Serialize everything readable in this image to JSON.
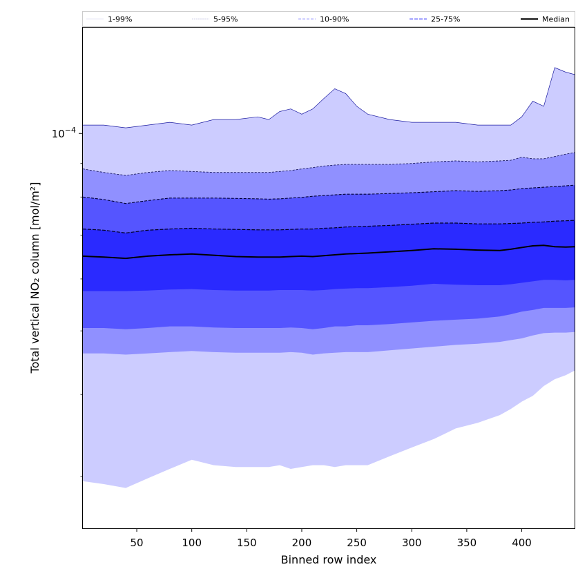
{
  "chart_data": {
    "type": "area",
    "xlabel": "Binned row index",
    "ylabel": "Total vertical NO₂ column [mol/m²]",
    "y_scale": "log",
    "xlim": [
      1,
      448
    ],
    "ylim": [
      2.5e-05,
      0.000145
    ],
    "x_ticks": [
      50,
      100,
      150,
      200,
      250,
      300,
      350,
      400
    ],
    "y_tick_label": {
      "value": 0.0001,
      "base": "10",
      "exponent": "−4"
    },
    "legend_position": "top (above plot)",
    "legend": [
      "1-99%",
      "5-95%",
      "10-90%",
      "25-75%",
      "Median"
    ],
    "colors": {
      "band_1_99": "#ccccff",
      "band_5_95": "#9090ff",
      "band_10_90": "#5555ff",
      "band_25_75": "#2a2aff",
      "median": "#000000",
      "upper_edge": "#1a1aa0"
    },
    "x": [
      1,
      20,
      40,
      60,
      80,
      100,
      120,
      140,
      160,
      170,
      180,
      190,
      200,
      210,
      220,
      230,
      240,
      250,
      260,
      280,
      300,
      320,
      340,
      360,
      380,
      390,
      400,
      410,
      420,
      430,
      440,
      448
    ],
    "series": [
      {
        "name": "1-99%",
        "lower": [
          2.95e-05,
          2.92e-05,
          2.88e-05,
          2.98e-05,
          3.08e-05,
          3.18e-05,
          3.12e-05,
          3.1e-05,
          3.1e-05,
          3.1e-05,
          3.12e-05,
          3.08e-05,
          3.1e-05,
          3.12e-05,
          3.12e-05,
          3.1e-05,
          3.12e-05,
          3.12e-05,
          3.12e-05,
          3.22e-05,
          3.32e-05,
          3.42e-05,
          3.55e-05,
          3.62e-05,
          3.72e-05,
          3.8e-05,
          3.9e-05,
          3.98e-05,
          4.12e-05,
          4.22e-05,
          4.28e-05,
          4.35e-05
        ],
        "upper": [
          0.000103,
          0.000103,
          0.000102,
          0.000103,
          0.000104,
          0.000103,
          0.000105,
          0.000105,
          0.000106,
          0.000105,
          0.000108,
          0.000109,
          0.000107,
          0.000109,
          0.000113,
          0.000117,
          0.000115,
          0.00011,
          0.000107,
          0.000105,
          0.000104,
          0.000104,
          0.000104,
          0.000103,
          0.000103,
          0.000103,
          0.000106,
          0.000112,
          0.00011,
          0.000126,
          0.000124,
          0.000123
        ]
      },
      {
        "name": "5-95%",
        "lower": [
          4.62e-05,
          4.62e-05,
          4.6e-05,
          4.62e-05,
          4.64e-05,
          4.66e-05,
          4.64e-05,
          4.63e-05,
          4.63e-05,
          4.63e-05,
          4.63e-05,
          4.64e-05,
          4.63e-05,
          4.6e-05,
          4.62e-05,
          4.63e-05,
          4.64e-05,
          4.64e-05,
          4.64e-05,
          4.67e-05,
          4.7e-05,
          4.73e-05,
          4.76e-05,
          4.78e-05,
          4.81e-05,
          4.84e-05,
          4.87e-05,
          4.92e-05,
          4.96e-05,
          4.97e-05,
          4.97e-05,
          4.98e-05
        ],
        "upper": [
          8.83e-05,
          8.72e-05,
          8.63e-05,
          8.72e-05,
          8.78e-05,
          8.75e-05,
          8.72e-05,
          8.72e-05,
          8.72e-05,
          8.72e-05,
          8.75e-05,
          8.78e-05,
          8.83e-05,
          8.87e-05,
          8.92e-05,
          8.95e-05,
          8.97e-05,
          8.97e-05,
          8.97e-05,
          8.97e-05,
          9e-05,
          9.05e-05,
          9.08e-05,
          9.05e-05,
          9.08e-05,
          9.1e-05,
          9.2e-05,
          9.15e-05,
          9.15e-05,
          9.22e-05,
          9.3e-05,
          9.35e-05
        ]
      },
      {
        "name": "10-90%",
        "lower": [
          5.05e-05,
          5.05e-05,
          5.03e-05,
          5.05e-05,
          5.08e-05,
          5.08e-05,
          5.06e-05,
          5.05e-05,
          5.05e-05,
          5.05e-05,
          5.05e-05,
          5.06e-05,
          5.05e-05,
          5.03e-05,
          5.05e-05,
          5.08e-05,
          5.08e-05,
          5.1e-05,
          5.1e-05,
          5.12e-05,
          5.15e-05,
          5.18e-05,
          5.2e-05,
          5.22e-05,
          5.26e-05,
          5.3e-05,
          5.35e-05,
          5.38e-05,
          5.42e-05,
          5.42e-05,
          5.42e-05,
          5.43e-05
        ],
        "upper": [
          8e-05,
          7.93e-05,
          7.82e-05,
          7.9e-05,
          7.97e-05,
          7.97e-05,
          7.97e-05,
          7.96e-05,
          7.95e-05,
          7.94e-05,
          7.95e-05,
          7.97e-05,
          7.99e-05,
          8.02e-05,
          8.04e-05,
          8.06e-05,
          8.08e-05,
          8.08e-05,
          8.08e-05,
          8.1e-05,
          8.12e-05,
          8.15e-05,
          8.18e-05,
          8.16e-05,
          8.18e-05,
          8.2e-05,
          8.24e-05,
          8.26e-05,
          8.28e-05,
          8.3e-05,
          8.32e-05,
          8.34e-05
        ]
      },
      {
        "name": "25-75%",
        "lower": [
          5.75e-05,
          5.75e-05,
          5.75e-05,
          5.76e-05,
          5.78e-05,
          5.79e-05,
          5.77e-05,
          5.76e-05,
          5.76e-05,
          5.76e-05,
          5.77e-05,
          5.77e-05,
          5.77e-05,
          5.76e-05,
          5.77e-05,
          5.79e-05,
          5.8e-05,
          5.81e-05,
          5.81e-05,
          5.83e-05,
          5.86e-05,
          5.9e-05,
          5.88e-05,
          5.87e-05,
          5.87e-05,
          5.89e-05,
          5.92e-05,
          5.95e-05,
          5.98e-05,
          5.98e-05,
          5.97e-05,
          5.98e-05
        ],
        "upper": [
          7.15e-05,
          7.12e-05,
          7.05e-05,
          7.12e-05,
          7.15e-05,
          7.17e-05,
          7.15e-05,
          7.14e-05,
          7.13e-05,
          7.13e-05,
          7.13e-05,
          7.14e-05,
          7.15e-05,
          7.15e-05,
          7.17e-05,
          7.18e-05,
          7.2e-05,
          7.21e-05,
          7.22e-05,
          7.24e-05,
          7.27e-05,
          7.3e-05,
          7.3e-05,
          7.28e-05,
          7.28e-05,
          7.29e-05,
          7.3e-05,
          7.32e-05,
          7.33e-05,
          7.35e-05,
          7.36e-05,
          7.37e-05
        ]
      },
      {
        "name": "Median",
        "values": [
          6.5e-05,
          6.48e-05,
          6.45e-05,
          6.5e-05,
          6.53e-05,
          6.55e-05,
          6.52e-05,
          6.49e-05,
          6.48e-05,
          6.48e-05,
          6.48e-05,
          6.49e-05,
          6.5e-05,
          6.49e-05,
          6.51e-05,
          6.53e-05,
          6.55e-05,
          6.56e-05,
          6.57e-05,
          6.6e-05,
          6.63e-05,
          6.67e-05,
          6.66e-05,
          6.64e-05,
          6.63e-05,
          6.66e-05,
          6.7e-05,
          6.74e-05,
          6.75e-05,
          6.72e-05,
          6.71e-05,
          6.72e-05
        ]
      }
    ]
  }
}
